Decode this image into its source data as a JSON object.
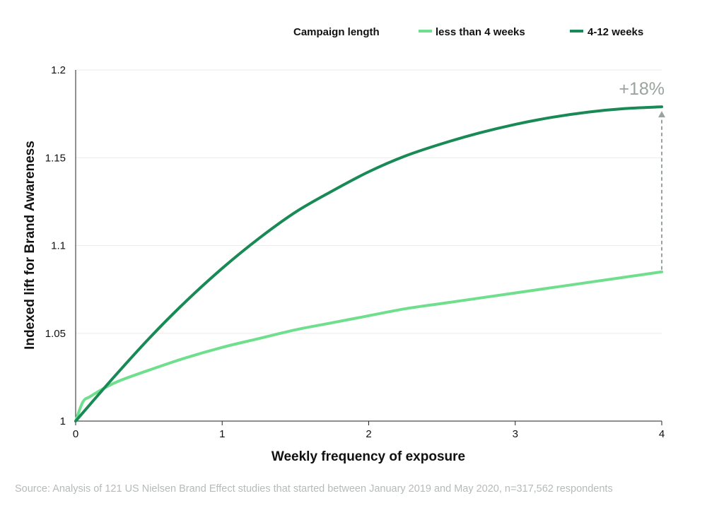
{
  "chart_data": {
    "type": "line",
    "title": "",
    "xlabel": "Weekly frequency of exposure",
    "ylabel": "Indexed lift for Brand Awareness",
    "xlim": [
      0,
      4
    ],
    "ylim": [
      1,
      1.2
    ],
    "x_ticks": [
      "0",
      "1",
      "2",
      "3",
      "4"
    ],
    "y_ticks": [
      "1",
      "1.05",
      "1.1",
      "1.15",
      "1.2"
    ],
    "grid": "horizontal",
    "legend": {
      "title": "Campaign length",
      "placement": "top-right"
    },
    "series": [
      {
        "name": "less than 4 weeks",
        "color": "#6fdf8e",
        "x": [
          0,
          0.05,
          0.1,
          0.2,
          0.3,
          0.5,
          0.75,
          1,
          1.25,
          1.5,
          1.75,
          2,
          2.25,
          2.5,
          2.75,
          3,
          3.25,
          3.5,
          3.75,
          4
        ],
        "y": [
          1.0,
          1.011,
          1.014,
          1.019,
          1.023,
          1.029,
          1.036,
          1.042,
          1.047,
          1.052,
          1.056,
          1.06,
          1.064,
          1.067,
          1.07,
          1.073,
          1.076,
          1.079,
          1.082,
          1.085
        ]
      },
      {
        "name": "4-12 weeks",
        "color": "#198a55",
        "x": [
          0,
          0.25,
          0.5,
          0.75,
          1,
          1.25,
          1.5,
          1.75,
          2,
          2.25,
          2.5,
          2.75,
          3,
          3.25,
          3.5,
          3.75,
          4
        ],
        "y": [
          1.0,
          1.024,
          1.047,
          1.068,
          1.087,
          1.104,
          1.119,
          1.131,
          1.142,
          1.151,
          1.158,
          1.164,
          1.169,
          1.173,
          1.176,
          1.178,
          1.179
        ]
      }
    ],
    "annotations": [
      {
        "text": "+18%",
        "x": 4,
        "y_from": 1.085,
        "y_to": 1.179,
        "color": "#9aa39d"
      }
    ],
    "source": "Source: Analysis of 121 US Nielsen Brand Effect studies that started between January 2019 and May 2020, n=317,562 respondents"
  }
}
